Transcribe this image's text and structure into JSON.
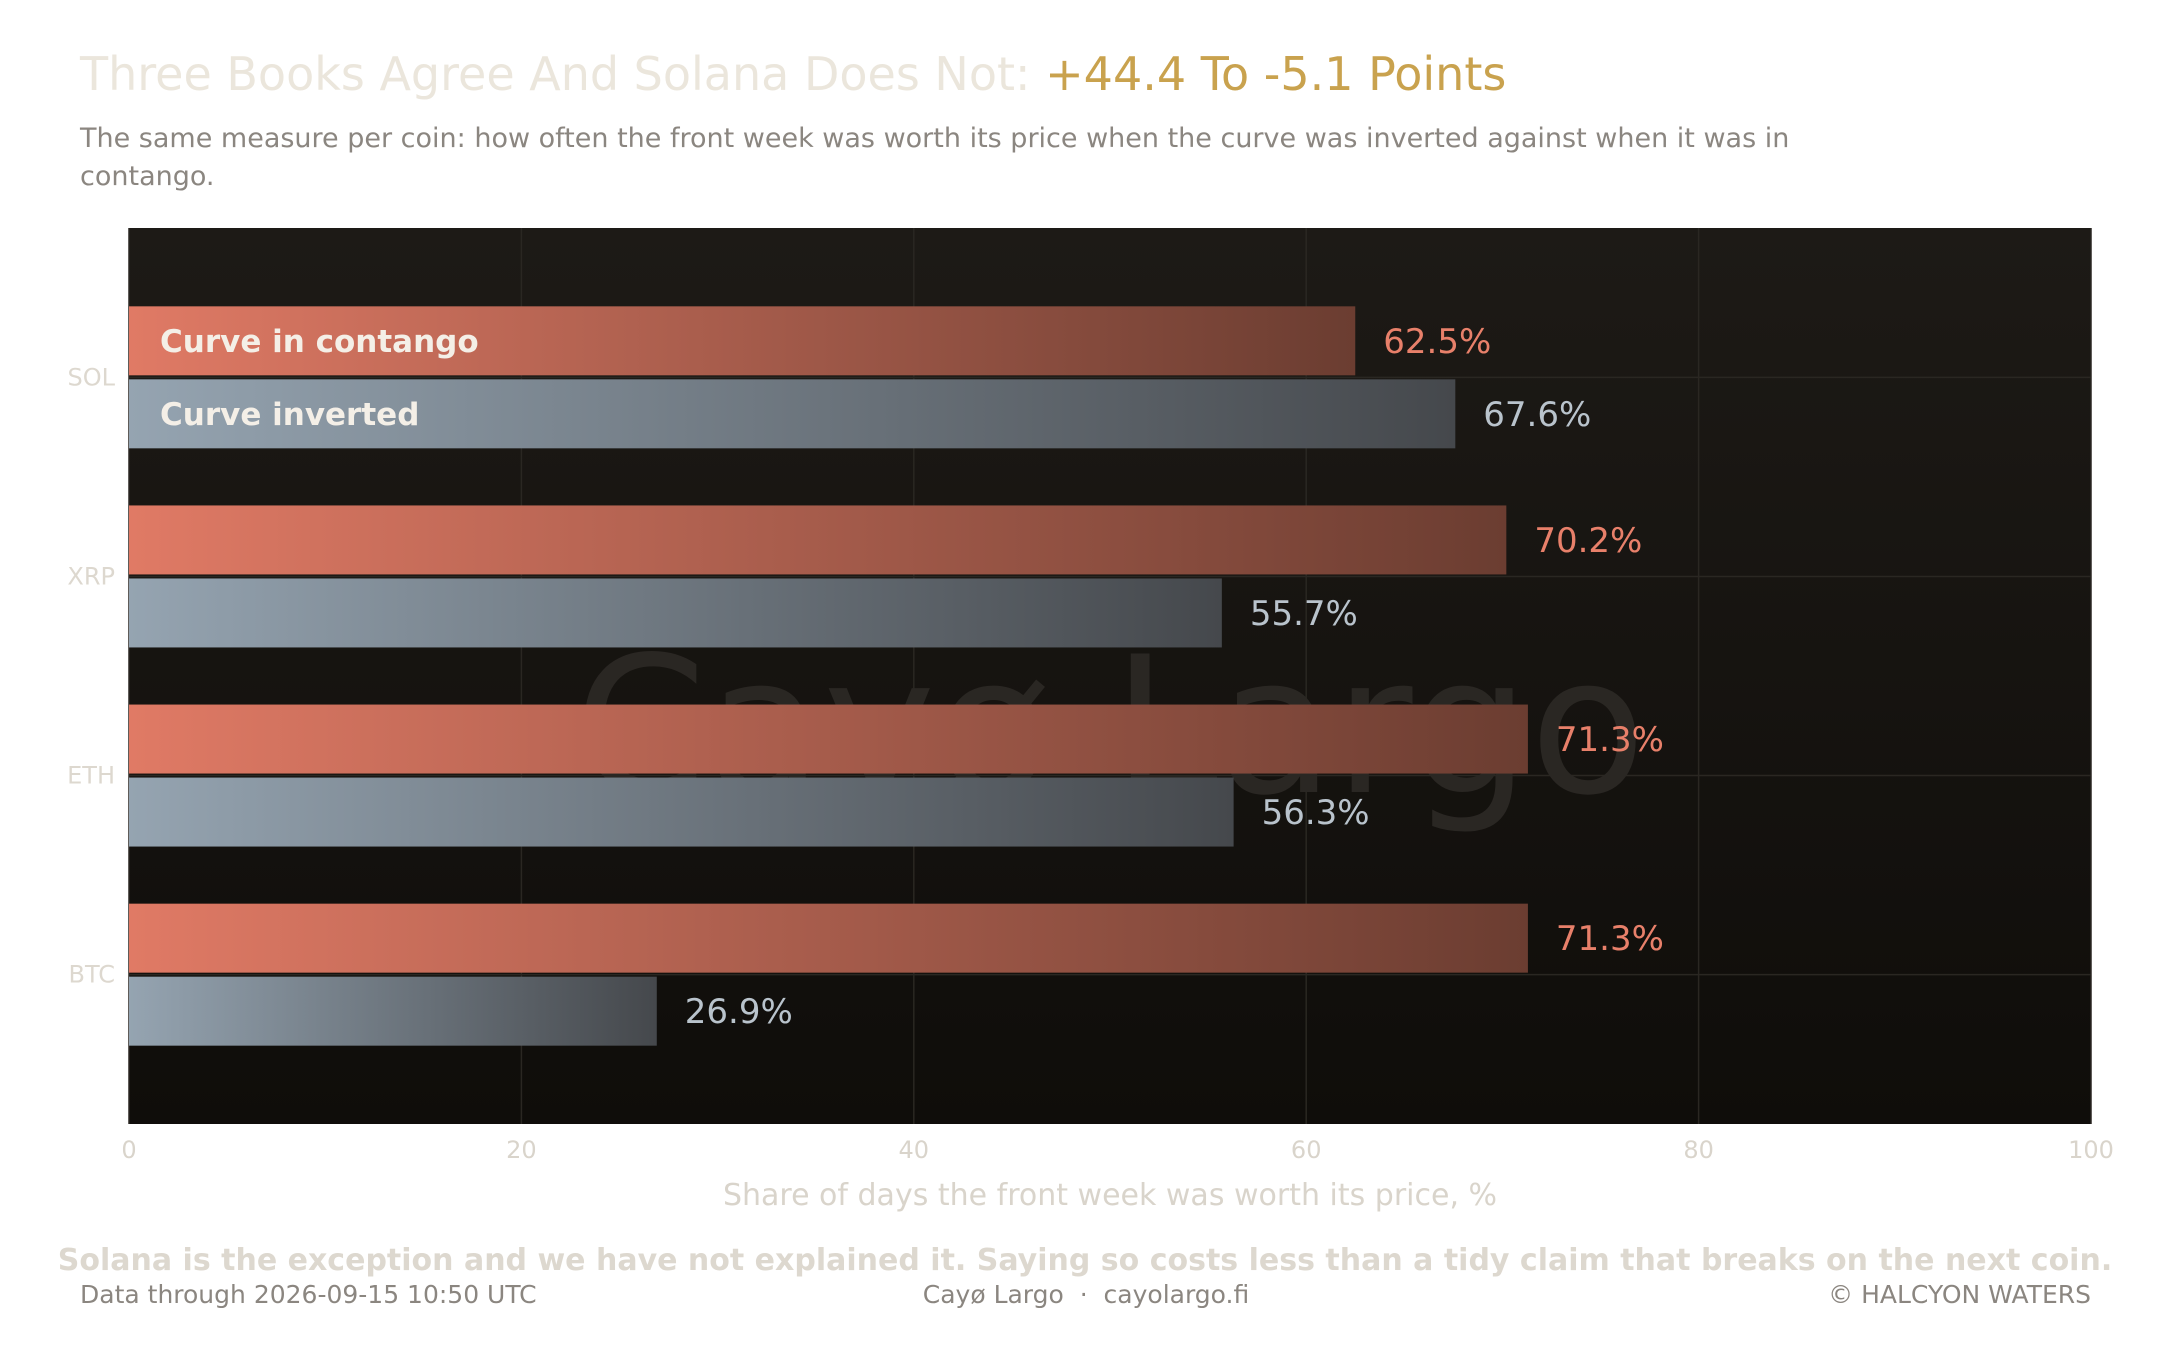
{
  "chart_data": {
    "type": "bar",
    "orientation": "horizontal",
    "title": "Three Books Agree And Solana Does Not:",
    "title_highlight": "+44.4 To -5.1 Points",
    "subtitle": "The same measure per coin: how often the front week was worth its price when the curve was inverted against when it was in contango.",
    "categories": [
      "SOL",
      "XRP",
      "ETH",
      "BTC"
    ],
    "series": [
      {
        "name": "Curve in contango",
        "color": "#e07a65",
        "color_end": "#6b3d31",
        "values": [
          62.5,
          70.2,
          71.3,
          71.3
        ],
        "value_labels": [
          "62.5%",
          "70.2%",
          "71.3%",
          "71.3%"
        ]
      },
      {
        "name": "Curve inverted",
        "color": "#95a4b1",
        "color_end": "#45484c",
        "values": [
          67.6,
          55.7,
          56.3,
          26.9
        ],
        "value_labels": [
          "67.6%",
          "55.7%",
          "56.3%",
          "26.9%"
        ]
      }
    ],
    "xlim": [
      0,
      100
    ],
    "xticks": [
      0,
      20,
      40,
      60,
      80,
      100
    ],
    "x_label": "Share of days the front week was worth its price, %",
    "grid": true,
    "watermark": "Cayø Largo",
    "note": "Solana is the exception and we have not explained it. Saying so costs less than a tidy claim that breaks on the next coin.",
    "source": "Data through 2026-09-15 10:50 UTC",
    "brand": "Cayø Largo  ·  cayolargo.fi",
    "copyright": "© HALCYON WATERS"
  }
}
